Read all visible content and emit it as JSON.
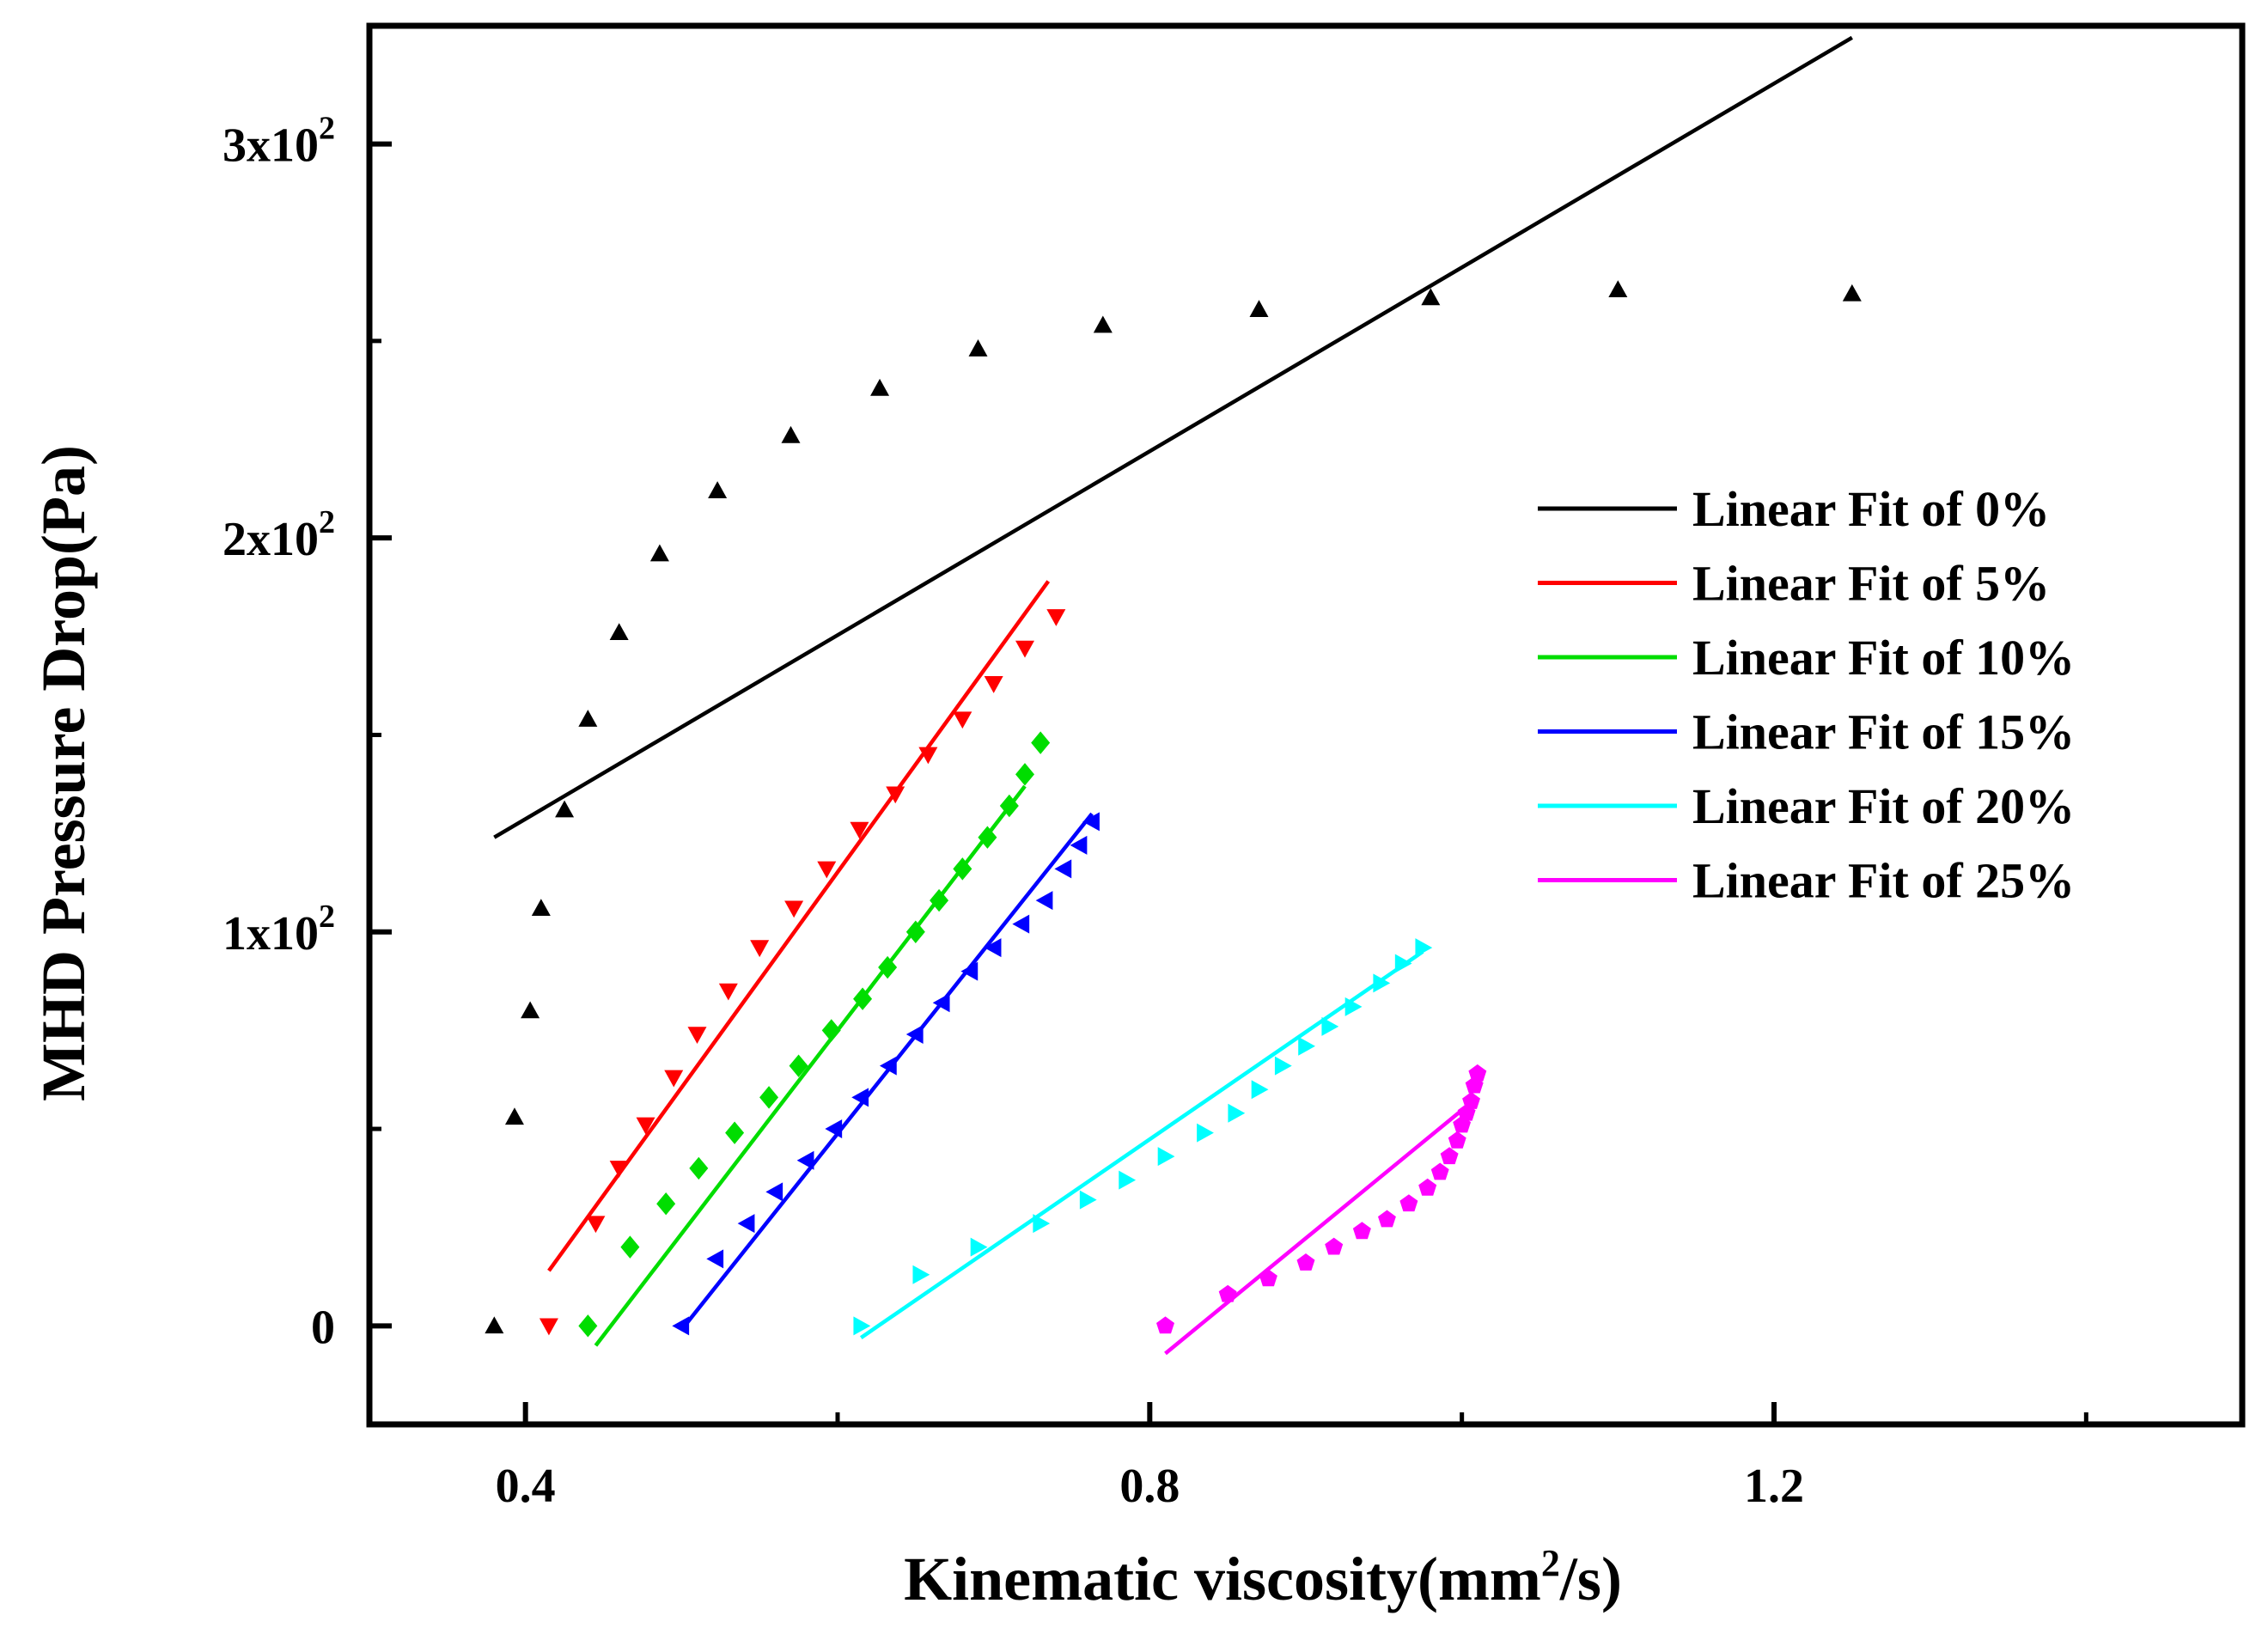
{
  "chart_data": {
    "type": "scatter",
    "xlabel": "Kinematic viscosity(mm²/s)",
    "xlabel_main": "Kinematic viscosity(mm",
    "xlabel_sup": "2",
    "xlabel_end": "/s)",
    "ylabel": "MHD Pressure Drop(Pa)",
    "xlim": [
      0.3,
      1.5
    ],
    "ylim": [
      -25,
      330
    ],
    "grid": false,
    "legend_position": "right",
    "x_ticks": [
      {
        "value": 0.4,
        "label": "0.4"
      },
      {
        "value": 0.8,
        "label": "0.8"
      },
      {
        "value": 1.2,
        "label": "1.2"
      }
    ],
    "y_ticks": [
      {
        "value": 0,
        "label": "0",
        "base": "0",
        "exp": ""
      },
      {
        "value": 100,
        "label": "1x10^2",
        "base": "1x10",
        "exp": "2"
      },
      {
        "value": 200,
        "label": "2x10^2",
        "base": "2x10",
        "exp": "2"
      },
      {
        "value": 300,
        "label": "3x10^2",
        "base": "3x10",
        "exp": "2"
      }
    ],
    "y_minor_ticks": [
      50,
      150,
      250
    ],
    "x_minor_ticks": [
      0.6,
      1.0,
      1.4
    ],
    "series": [
      {
        "name": "0%",
        "legend": "Linear Fit of 0%",
        "color": "#000000",
        "marker": "triangle-up",
        "points": [
          [
            0.38,
            0
          ],
          [
            0.393,
            53
          ],
          [
            0.403,
            80
          ],
          [
            0.41,
            106
          ],
          [
            0.425,
            131
          ],
          [
            0.44,
            154
          ],
          [
            0.46,
            176
          ],
          [
            0.486,
            196
          ],
          [
            0.523,
            212
          ],
          [
            0.57,
            226
          ],
          [
            0.627,
            238
          ],
          [
            0.69,
            248
          ],
          [
            0.77,
            254
          ],
          [
            0.87,
            258
          ],
          [
            0.98,
            261
          ],
          [
            1.1,
            263
          ],
          [
            1.25,
            262
          ]
        ],
        "fit": [
          [
            0.38,
            124
          ],
          [
            1.25,
            327
          ]
        ]
      },
      {
        "name": "5%",
        "legend": "Linear Fit of 5%",
        "color": "#ff0000",
        "marker": "triangle-down",
        "points": [
          [
            0.415,
            0
          ],
          [
            0.445,
            26
          ],
          [
            0.46,
            40
          ],
          [
            0.477,
            51
          ],
          [
            0.495,
            63
          ],
          [
            0.51,
            74
          ],
          [
            0.53,
            85
          ],
          [
            0.55,
            96
          ],
          [
            0.572,
            106
          ],
          [
            0.593,
            116
          ],
          [
            0.614,
            126
          ],
          [
            0.637,
            135
          ],
          [
            0.658,
            145
          ],
          [
            0.68,
            154
          ],
          [
            0.7,
            163
          ],
          [
            0.72,
            172
          ],
          [
            0.74,
            180
          ]
        ],
        "fit": [
          [
            0.415,
            14
          ],
          [
            0.735,
            189
          ]
        ]
      },
      {
        "name": "10%",
        "legend": "Linear Fit of 10%",
        "color": "#00dd00",
        "marker": "diamond",
        "points": [
          [
            0.44,
            0
          ],
          [
            0.467,
            20
          ],
          [
            0.49,
            31
          ],
          [
            0.511,
            40
          ],
          [
            0.534,
            49
          ],
          [
            0.556,
            58
          ],
          [
            0.575,
            66
          ],
          [
            0.596,
            75
          ],
          [
            0.616,
            83
          ],
          [
            0.632,
            91
          ],
          [
            0.65,
            100
          ],
          [
            0.665,
            108
          ],
          [
            0.68,
            116
          ],
          [
            0.696,
            124
          ],
          [
            0.71,
            132
          ],
          [
            0.72,
            140
          ],
          [
            0.73,
            148
          ]
        ],
        "fit": [
          [
            0.445,
            -5
          ],
          [
            0.72,
            137
          ]
        ]
      },
      {
        "name": "15%",
        "legend": "Linear Fit of 15%",
        "color": "#0000ff",
        "marker": "triangle-left",
        "points": [
          [
            0.5,
            0
          ],
          [
            0.522,
            17
          ],
          [
            0.542,
            26
          ],
          [
            0.56,
            34
          ],
          [
            0.58,
            42
          ],
          [
            0.598,
            50
          ],
          [
            0.615,
            58
          ],
          [
            0.633,
            66
          ],
          [
            0.65,
            74
          ],
          [
            0.667,
            82
          ],
          [
            0.685,
            90
          ],
          [
            0.7,
            96
          ],
          [
            0.718,
            102
          ],
          [
            0.733,
            108
          ],
          [
            0.745,
            116
          ],
          [
            0.755,
            122
          ],
          [
            0.763,
            128
          ]
        ],
        "fit": [
          [
            0.5,
            -1
          ],
          [
            0.763,
            130
          ]
        ]
      },
      {
        "name": "20%",
        "legend": "Linear Fit of 20%",
        "color": "#00ffff",
        "marker": "triangle-right",
        "points": [
          [
            0.615,
            0
          ],
          [
            0.653,
            13
          ],
          [
            0.69,
            20
          ],
          [
            0.73,
            26
          ],
          [
            0.76,
            32
          ],
          [
            0.785,
            37
          ],
          [
            0.81,
            43
          ],
          [
            0.835,
            49
          ],
          [
            0.855,
            54
          ],
          [
            0.87,
            60
          ],
          [
            0.885,
            66
          ],
          [
            0.9,
            71
          ],
          [
            0.915,
            76
          ],
          [
            0.93,
            81
          ],
          [
            0.948,
            87
          ],
          [
            0.962,
            92
          ],
          [
            0.975,
            96
          ]
        ],
        "fit": [
          [
            0.615,
            -3
          ],
          [
            0.975,
            95
          ]
        ]
      },
      {
        "name": "25%",
        "legend": "Linear Fit of 25%",
        "color": "#ff00ff",
        "marker": "pentagon",
        "points": [
          [
            0.81,
            0
          ],
          [
            0.85,
            8
          ],
          [
            0.876,
            12
          ],
          [
            0.9,
            16
          ],
          [
            0.918,
            20
          ],
          [
            0.936,
            24
          ],
          [
            0.952,
            27
          ],
          [
            0.966,
            31
          ],
          [
            0.978,
            35
          ],
          [
            0.986,
            39
          ],
          [
            0.992,
            43
          ],
          [
            0.997,
            47
          ],
          [
            1.0,
            51
          ],
          [
            1.003,
            54
          ],
          [
            1.006,
            57
          ],
          [
            1.008,
            61
          ],
          [
            1.01,
            64
          ]
        ],
        "fit": [
          [
            0.81,
            -7
          ],
          [
            1.01,
            58
          ]
        ]
      }
    ]
  }
}
